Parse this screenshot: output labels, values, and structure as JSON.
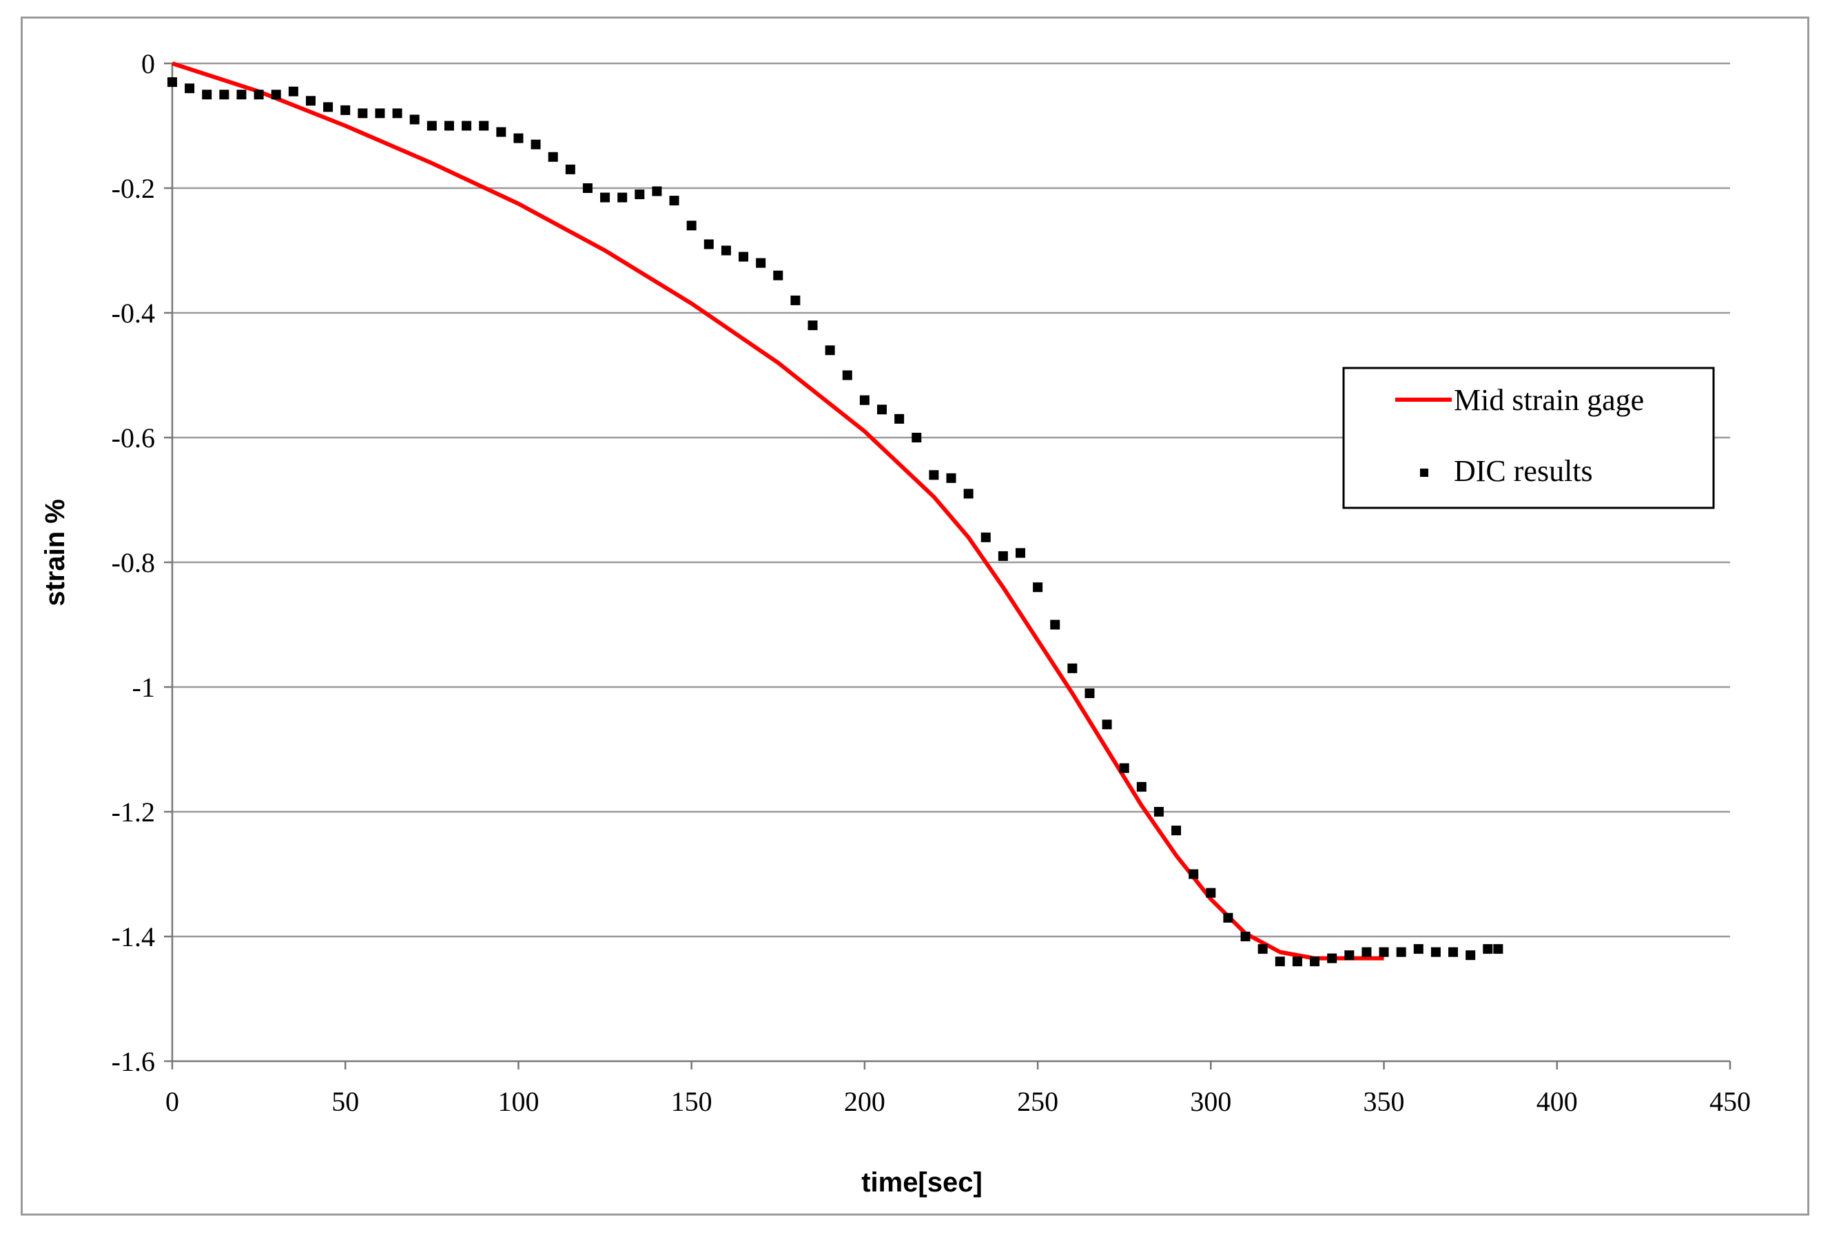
{
  "chart_data": {
    "type": "line",
    "xlabel": "time[sec]",
    "ylabel": "strain %",
    "xlim": [
      0,
      450
    ],
    "ylim": [
      -1.6,
      0
    ],
    "x_ticks": [
      0,
      50,
      100,
      150,
      200,
      250,
      300,
      350,
      400,
      450
    ],
    "y_ticks": [
      0,
      -0.2,
      -0.4,
      -0.6,
      -0.8,
      -1,
      -1.2,
      -1.4,
      -1.6
    ],
    "grid": "horizontal",
    "legend_position": "right",
    "colors": {
      "mid_strain_gage": "#ff0000",
      "dic_results": "#000000",
      "grid": "#999999",
      "frame": "#9a9a9a"
    },
    "series": [
      {
        "name": "Mid strain gage",
        "style": "line",
        "x": [
          0,
          25,
          50,
          75,
          100,
          125,
          150,
          175,
          200,
          220,
          230,
          240,
          250,
          260,
          270,
          280,
          290,
          300,
          310,
          320,
          330,
          340,
          350
        ],
        "y": [
          0,
          -0.045,
          -0.1,
          -0.16,
          -0.225,
          -0.3,
          -0.385,
          -0.48,
          -0.59,
          -0.695,
          -0.76,
          -0.84,
          -0.925,
          -1.01,
          -1.1,
          -1.19,
          -1.27,
          -1.34,
          -1.395,
          -1.425,
          -1.435,
          -1.435,
          -1.435
        ]
      },
      {
        "name": "DIC results",
        "style": "markers",
        "x": [
          0,
          5,
          10,
          15,
          20,
          25,
          30,
          35,
          40,
          45,
          50,
          55,
          60,
          65,
          70,
          75,
          80,
          85,
          90,
          95,
          100,
          105,
          110,
          115,
          120,
          125,
          130,
          135,
          140,
          145,
          150,
          155,
          160,
          165,
          170,
          175,
          180,
          185,
          190,
          195,
          200,
          205,
          210,
          215,
          220,
          225,
          230,
          235,
          240,
          245,
          250,
          255,
          260,
          265,
          270,
          275,
          280,
          285,
          290,
          295,
          300,
          305,
          310,
          315,
          320,
          325,
          330,
          335,
          340,
          345,
          350,
          355,
          360,
          365,
          370,
          375,
          380,
          383
        ],
        "y": [
          -0.03,
          -0.04,
          -0.05,
          -0.05,
          -0.05,
          -0.05,
          -0.05,
          -0.045,
          -0.06,
          -0.07,
          -0.075,
          -0.08,
          -0.08,
          -0.08,
          -0.09,
          -0.1,
          -0.1,
          -0.1,
          -0.1,
          -0.11,
          -0.12,
          -0.13,
          -0.15,
          -0.17,
          -0.2,
          -0.215,
          -0.215,
          -0.21,
          -0.205,
          -0.22,
          -0.26,
          -0.29,
          -0.3,
          -0.31,
          -0.32,
          -0.34,
          -0.38,
          -0.42,
          -0.46,
          -0.5,
          -0.54,
          -0.555,
          -0.57,
          -0.6,
          -0.66,
          -0.665,
          -0.69,
          -0.76,
          -0.79,
          -0.785,
          -0.84,
          -0.9,
          -0.97,
          -1.01,
          -1.06,
          -1.13,
          -1.16,
          -1.2,
          -1.23,
          -1.3,
          -1.33,
          -1.37,
          -1.4,
          -1.42,
          -1.44,
          -1.44,
          -1.44,
          -1.435,
          -1.43,
          -1.425,
          -1.425,
          -1.425,
          -1.42,
          -1.425,
          -1.425,
          -1.43,
          -1.42,
          -1.42
        ]
      }
    ]
  }
}
